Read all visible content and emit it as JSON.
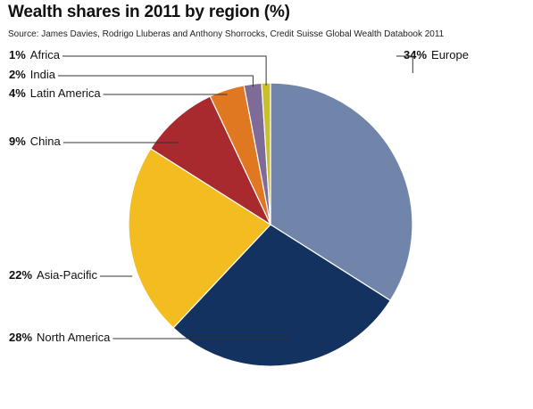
{
  "chart_data": {
    "type": "pie",
    "title": "Wealth shares in 2011 by region (%)",
    "source": "Source: James Davies, Rodrigo Lluberas and Anthony Shorrocks, Credit Suisse Global Wealth Databook 2011",
    "unit": "%",
    "slices": [
      {
        "label": "Europe",
        "value": 34,
        "color": "#7185aa"
      },
      {
        "label": "North America",
        "value": 28,
        "color": "#14325f"
      },
      {
        "label": "Asia-Pacific",
        "value": 22,
        "color": "#f3bd22"
      },
      {
        "label": "China",
        "value": 9,
        "color": "#a8292e"
      },
      {
        "label": "Latin America",
        "value": 4,
        "color": "#e07822"
      },
      {
        "label": "India",
        "value": 2,
        "color": "#7f6b98"
      },
      {
        "label": "Africa",
        "value": 1,
        "color": "#c9c02d"
      }
    ]
  }
}
